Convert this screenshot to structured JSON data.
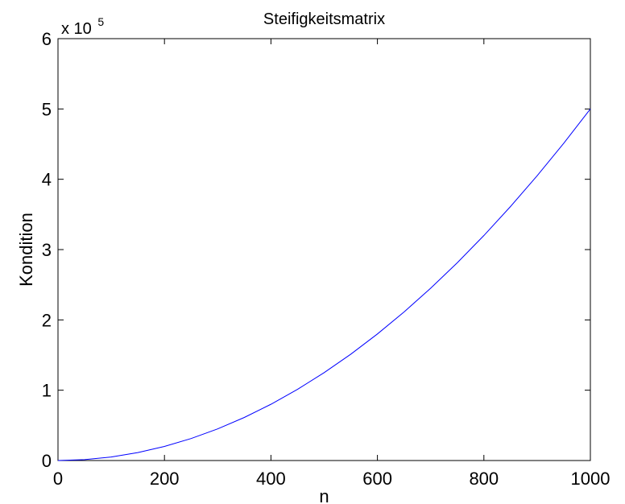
{
  "chart_data": {
    "type": "line",
    "title": "Steifigkeitsmatrix",
    "xlabel": "n",
    "ylabel": "Kondition",
    "xlim": [
      0,
      1000
    ],
    "ylim": [
      0,
      600000
    ],
    "xticks": [
      0,
      200,
      400,
      600,
      800,
      1000
    ],
    "yticks": [
      0,
      100000,
      200000,
      300000,
      400000,
      500000,
      600000
    ],
    "xtick_labels": [
      "0",
      "200",
      "400",
      "600",
      "800",
      "1000"
    ],
    "ytick_labels": [
      "0",
      "1",
      "2",
      "3",
      "4",
      "5",
      "6"
    ],
    "y_multiplier_base": "x 10",
    "y_multiplier_exponent": "5",
    "grid": false,
    "series": [
      {
        "color": "#0000ff",
        "x": [
          0,
          50,
          100,
          150,
          200,
          250,
          300,
          350,
          400,
          450,
          500,
          550,
          600,
          650,
          700,
          750,
          800,
          850,
          900,
          950,
          1000
        ],
        "y": [
          0,
          1250,
          5000,
          11250,
          20000,
          31250,
          45000,
          61250,
          80000,
          101250,
          125000,
          151250,
          180000,
          211250,
          245000,
          281250,
          320000,
          361250,
          405000,
          451250,
          500000
        ]
      }
    ]
  }
}
